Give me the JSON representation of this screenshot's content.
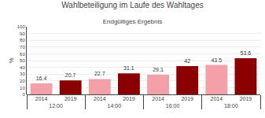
{
  "chart_data": {
    "type": "bar",
    "title": "Wahlbeteiligung im Laufe des Wahltages",
    "subtitle": "Endgültiges Ergebnis",
    "categories": [
      "12:00",
      "14:00",
      "16:00",
      "18:00"
    ],
    "series": [
      {
        "name": "2014",
        "color": "#f4a0a8",
        "values": [
          16.4,
          22.7,
          29.1,
          43.5
        ]
      },
      {
        "name": "2019",
        "color": "#8b0000",
        "values": [
          20.7,
          31.1,
          42.0,
          53.6
        ]
      }
    ],
    "ylabel": "%",
    "ylim": [
      0,
      100
    ],
    "yticks": [
      0,
      10,
      20,
      30,
      40,
      50,
      60,
      70,
      80,
      90,
      100
    ],
    "grid": true,
    "data_labels": true
  }
}
